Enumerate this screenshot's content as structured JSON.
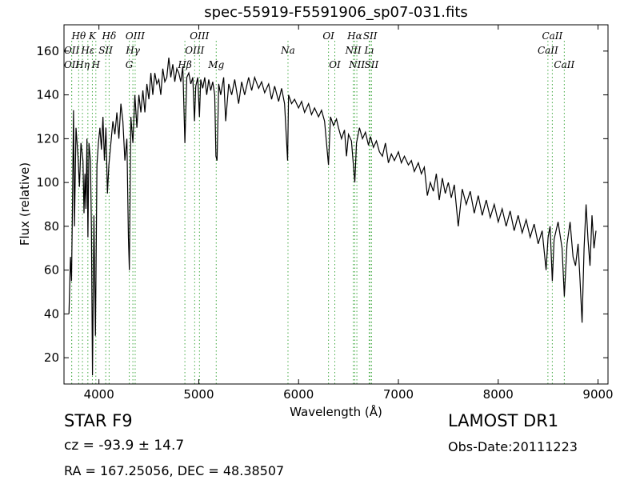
{
  "chart_data": {
    "type": "line",
    "title": "spec-55919-F5591906_sp07-031.fits",
    "xlabel": "Wavelength (Å)",
    "ylabel": "Flux (relative)",
    "xlim": [
      3650,
      9100
    ],
    "ylim": [
      8,
      172
    ],
    "x_ticks": [
      4000,
      5000,
      6000,
      7000,
      8000,
      9000
    ],
    "y_ticks": [
      20,
      40,
      60,
      80,
      100,
      120,
      140,
      160
    ],
    "grid": false,
    "series_color": "#000000",
    "line_marker_color": "#44aa44",
    "spectrum": [
      [
        3700,
        40
      ],
      [
        3715,
        66
      ],
      [
        3725,
        55
      ],
      [
        3735,
        90
      ],
      [
        3745,
        133
      ],
      [
        3755,
        80
      ],
      [
        3770,
        125
      ],
      [
        3790,
        112
      ],
      [
        3805,
        98
      ],
      [
        3820,
        118
      ],
      [
        3840,
        110
      ],
      [
        3850,
        86
      ],
      [
        3860,
        104
      ],
      [
        3870,
        88
      ],
      [
        3880,
        120
      ],
      [
        3890,
        75
      ],
      [
        3900,
        118
      ],
      [
        3915,
        110
      ],
      [
        3925,
        78
      ],
      [
        3935,
        12
      ],
      [
        3950,
        85
      ],
      [
        3965,
        30
      ],
      [
        3980,
        108
      ],
      [
        3995,
        118
      ],
      [
        4010,
        125
      ],
      [
        4025,
        115
      ],
      [
        4040,
        130
      ],
      [
        4055,
        110
      ],
      [
        4070,
        125
      ],
      [
        4085,
        95
      ],
      [
        4100,
        108
      ],
      [
        4120,
        118
      ],
      [
        4140,
        128
      ],
      [
        4160,
        122
      ],
      [
        4180,
        132
      ],
      [
        4200,
        120
      ],
      [
        4220,
        136
      ],
      [
        4240,
        128
      ],
      [
        4260,
        110
      ],
      [
        4280,
        120
      ],
      [
        4295,
        75
      ],
      [
        4305,
        60
      ],
      [
        4320,
        130
      ],
      [
        4340,
        118
      ],
      [
        4360,
        140
      ],
      [
        4380,
        125
      ],
      [
        4400,
        140
      ],
      [
        4420,
        132
      ],
      [
        4440,
        142
      ],
      [
        4460,
        132
      ],
      [
        4480,
        145
      ],
      [
        4500,
        138
      ],
      [
        4520,
        150
      ],
      [
        4540,
        140
      ],
      [
        4560,
        150
      ],
      [
        4580,
        145
      ],
      [
        4600,
        147
      ],
      [
        4620,
        140
      ],
      [
        4640,
        152
      ],
      [
        4660,
        146
      ],
      [
        4680,
        148
      ],
      [
        4700,
        157
      ],
      [
        4720,
        148
      ],
      [
        4740,
        154
      ],
      [
        4760,
        146
      ],
      [
        4780,
        152
      ],
      [
        4800,
        150
      ],
      [
        4820,
        146
      ],
      [
        4840,
        153
      ],
      [
        4861,
        118
      ],
      [
        4880,
        148
      ],
      [
        4900,
        150
      ],
      [
        4920,
        145
      ],
      [
        4940,
        148
      ],
      [
        4957,
        128
      ],
      [
        4970,
        144
      ],
      [
        4990,
        148
      ],
      [
        5007,
        130
      ],
      [
        5020,
        147
      ],
      [
        5040,
        143
      ],
      [
        5060,
        148
      ],
      [
        5080,
        140
      ],
      [
        5100,
        147
      ],
      [
        5120,
        142
      ],
      [
        5140,
        146
      ],
      [
        5160,
        140
      ],
      [
        5172,
        112
      ],
      [
        5183,
        110
      ],
      [
        5200,
        145
      ],
      [
        5220,
        140
      ],
      [
        5250,
        148
      ],
      [
        5270,
        128
      ],
      [
        5300,
        145
      ],
      [
        5330,
        140
      ],
      [
        5360,
        147
      ],
      [
        5400,
        136
      ],
      [
        5430,
        146
      ],
      [
        5460,
        140
      ],
      [
        5500,
        148
      ],
      [
        5530,
        142
      ],
      [
        5560,
        148
      ],
      [
        5600,
        143
      ],
      [
        5630,
        146
      ],
      [
        5660,
        141
      ],
      [
        5700,
        145
      ],
      [
        5730,
        138
      ],
      [
        5760,
        144
      ],
      [
        5800,
        137
      ],
      [
        5830,
        143
      ],
      [
        5860,
        136
      ],
      [
        5890,
        110
      ],
      [
        5900,
        140
      ],
      [
        5930,
        136
      ],
      [
        5960,
        138
      ],
      [
        6000,
        134
      ],
      [
        6030,
        137
      ],
      [
        6060,
        132
      ],
      [
        6100,
        136
      ],
      [
        6130,
        131
      ],
      [
        6160,
        134
      ],
      [
        6200,
        130
      ],
      [
        6230,
        133
      ],
      [
        6260,
        128
      ],
      [
        6300,
        108
      ],
      [
        6320,
        130
      ],
      [
        6350,
        126
      ],
      [
        6380,
        129
      ],
      [
        6400,
        125
      ],
      [
        6430,
        120
      ],
      [
        6460,
        124
      ],
      [
        6480,
        112
      ],
      [
        6500,
        122
      ],
      [
        6530,
        119
      ],
      [
        6563,
        100
      ],
      [
        6580,
        118
      ],
      [
        6610,
        125
      ],
      [
        6640,
        120
      ],
      [
        6670,
        123
      ],
      [
        6700,
        117
      ],
      [
        6720,
        121
      ],
      [
        6750,
        116
      ],
      [
        6780,
        119
      ],
      [
        6810,
        114
      ],
      [
        6840,
        112
      ],
      [
        6870,
        118
      ],
      [
        6900,
        109
      ],
      [
        6930,
        113
      ],
      [
        6960,
        110
      ],
      [
        7000,
        114
      ],
      [
        7030,
        109
      ],
      [
        7060,
        112
      ],
      [
        7100,
        108
      ],
      [
        7130,
        110
      ],
      [
        7160,
        105
      ],
      [
        7200,
        109
      ],
      [
        7230,
        104
      ],
      [
        7260,
        107
      ],
      [
        7290,
        94
      ],
      [
        7320,
        100
      ],
      [
        7350,
        96
      ],
      [
        7380,
        104
      ],
      [
        7410,
        92
      ],
      [
        7440,
        102
      ],
      [
        7470,
        95
      ],
      [
        7500,
        100
      ],
      [
        7530,
        93
      ],
      [
        7560,
        99
      ],
      [
        7600,
        80
      ],
      [
        7640,
        97
      ],
      [
        7680,
        90
      ],
      [
        7720,
        96
      ],
      [
        7760,
        86
      ],
      [
        7800,
        94
      ],
      [
        7840,
        85
      ],
      [
        7880,
        92
      ],
      [
        7920,
        84
      ],
      [
        7960,
        90
      ],
      [
        8000,
        82
      ],
      [
        8040,
        88
      ],
      [
        8080,
        80
      ],
      [
        8120,
        87
      ],
      [
        8160,
        78
      ],
      [
        8200,
        85
      ],
      [
        8240,
        77
      ],
      [
        8280,
        83
      ],
      [
        8320,
        75
      ],
      [
        8360,
        81
      ],
      [
        8400,
        72
      ],
      [
        8440,
        78
      ],
      [
        8480,
        60
      ],
      [
        8500,
        75
      ],
      [
        8520,
        80
      ],
      [
        8542,
        55
      ],
      [
        8560,
        74
      ],
      [
        8600,
        82
      ],
      [
        8640,
        70
      ],
      [
        8662,
        48
      ],
      [
        8690,
        72
      ],
      [
        8720,
        82
      ],
      [
        8750,
        66
      ],
      [
        8775,
        62
      ],
      [
        8800,
        72
      ],
      [
        8820,
        55
      ],
      [
        8840,
        36
      ],
      [
        8860,
        70
      ],
      [
        8880,
        90
      ],
      [
        8900,
        74
      ],
      [
        8920,
        62
      ],
      [
        8940,
        85
      ],
      [
        8960,
        70
      ],
      [
        8980,
        78
      ]
    ],
    "spectral_lines": [
      {
        "label": "OII",
        "x": 3727,
        "row": 1
      },
      {
        "label": "Hθ",
        "x": 3797,
        "row": 0
      },
      {
        "label": "OII",
        "x": 3727,
        "row": 2
      },
      {
        "label": "Hη",
        "x": 3835,
        "row": 2
      },
      {
        "label": "Hε",
        "x": 3889,
        "row": 1
      },
      {
        "label": "K",
        "x": 3934,
        "row": 0
      },
      {
        "label": "SII",
        "x": 4068,
        "row": 1
      },
      {
        "label": "H",
        "x": 3969,
        "row": 2
      },
      {
        "label": "Hδ",
        "x": 4102,
        "row": 0
      },
      {
        "label": "OIII",
        "x": 4363,
        "row": 0
      },
      {
        "label": "Hγ",
        "x": 4340,
        "row": 1
      },
      {
        "label": "G",
        "x": 4304,
        "row": 2
      },
      {
        "label": "OIII",
        "x": 5007,
        "row": 0
      },
      {
        "label": "OIII",
        "x": 4959,
        "row": 1
      },
      {
        "label": "Hβ",
        "x": 4861,
        "row": 2
      },
      {
        "label": "Mg",
        "x": 5175,
        "row": 2
      },
      {
        "label": "Na",
        "x": 5894,
        "row": 1
      },
      {
        "label": "OI",
        "x": 6300,
        "row": 0
      },
      {
        "label": "OI",
        "x": 6363,
        "row": 2
      },
      {
        "label": "Hα",
        "x": 6563,
        "row": 0
      },
      {
        "label": "SII",
        "x": 6717,
        "row": 0
      },
      {
        "label": "NII",
        "x": 6548,
        "row": 1
      },
      {
        "label": "Lı",
        "x": 6707,
        "row": 1
      },
      {
        "label": "NII",
        "x": 6584,
        "row": 2
      },
      {
        "label": "SII",
        "x": 6731,
        "row": 2
      },
      {
        "label": "CaII",
        "x": 8542,
        "row": 0
      },
      {
        "label": "CaII",
        "x": 8498,
        "row": 1
      },
      {
        "label": "CaII",
        "x": 8662,
        "row": 2
      }
    ]
  },
  "info": {
    "class_label": "STAR   F9",
    "survey": "LAMOST DR1",
    "cz": "cz = -93.9 ± 14.7",
    "obs_date": "Obs-Date:20111223",
    "coords": "RA = 167.25056, DEC = 48.38507"
  }
}
